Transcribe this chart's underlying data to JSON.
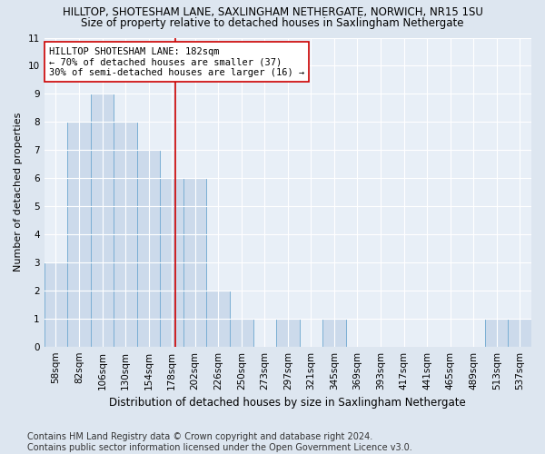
{
  "title": "HILLTOP, SHOTESHAM LANE, SAXLINGHAM NETHERGATE, NORWICH, NR15 1SU",
  "subtitle": "Size of property relative to detached houses in Saxlingham Nethergate",
  "xlabel": "Distribution of detached houses by size in Saxlingham Nethergate",
  "ylabel": "Number of detached properties",
  "categories": [
    "58sqm",
    "82sqm",
    "106sqm",
    "130sqm",
    "154sqm",
    "178sqm",
    "202sqm",
    "226sqm",
    "250sqm",
    "273sqm",
    "297sqm",
    "321sqm",
    "345sqm",
    "369sqm",
    "393sqm",
    "417sqm",
    "441sqm",
    "465sqm",
    "489sqm",
    "513sqm",
    "537sqm"
  ],
  "values": [
    3,
    8,
    9,
    8,
    7,
    6,
    6,
    2,
    1,
    0,
    1,
    0,
    1,
    0,
    0,
    0,
    0,
    0,
    0,
    1,
    1
  ],
  "bar_color": "#ccdaeb",
  "bar_edge_color": "#7bafd4",
  "marker_line_color": "#cc0000",
  "annotation_line1": "HILLTOP SHOTESHAM LANE: 182sqm",
  "annotation_line2": "← 70% of detached houses are smaller (37)",
  "annotation_line3": "30% of semi-detached houses are larger (16) →",
  "annotation_box_color": "white",
  "annotation_box_edge_color": "#cc0000",
  "ylim": [
    0,
    11
  ],
  "yticks": [
    0,
    1,
    2,
    3,
    4,
    5,
    6,
    7,
    8,
    9,
    10,
    11
  ],
  "footer": "Contains HM Land Registry data © Crown copyright and database right 2024.\nContains public sector information licensed under the Open Government Licence v3.0.",
  "title_fontsize": 8.5,
  "subtitle_fontsize": 8.5,
  "xlabel_fontsize": 8.5,
  "ylabel_fontsize": 8.0,
  "tick_fontsize": 7.5,
  "annotation_fontsize": 7.5,
  "footer_fontsize": 7.0,
  "background_color": "#dde6f0",
  "plot_background_color": "#e8eff7"
}
